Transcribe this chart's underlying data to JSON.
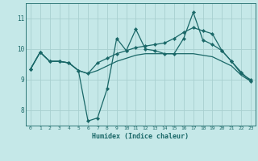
{
  "xlabel": "Humidex (Indice chaleur)",
  "xlim": [
    -0.5,
    23.5
  ],
  "ylim": [
    7.5,
    11.5
  ],
  "yticks": [
    8,
    9,
    10,
    11
  ],
  "xticks": [
    0,
    1,
    2,
    3,
    4,
    5,
    6,
    7,
    8,
    9,
    10,
    11,
    12,
    13,
    14,
    15,
    16,
    17,
    18,
    19,
    20,
    21,
    22,
    23
  ],
  "bg_color": "#c5e8e8",
  "grid_color": "#a8d0d0",
  "line_color": "#1a6868",
  "lines": [
    {
      "x": [
        0,
        1,
        2,
        3,
        4,
        5,
        6,
        7,
        8,
        9,
        10,
        11,
        12,
        13,
        14,
        15,
        16,
        17,
        18,
        19,
        20,
        21,
        22,
        23
      ],
      "y": [
        9.35,
        9.9,
        9.6,
        9.6,
        9.55,
        9.3,
        7.65,
        7.75,
        8.7,
        10.35,
        9.95,
        10.65,
        10.0,
        9.95,
        9.85,
        9.85,
        10.35,
        11.2,
        10.3,
        10.15,
        9.95,
        9.6,
        9.25,
        8.95
      ]
    },
    {
      "x": [
        0,
        1,
        2,
        3,
        4,
        5,
        6,
        7,
        8,
        9,
        10,
        11,
        12,
        13,
        14,
        15,
        16,
        17,
        18,
        19,
        20,
        21,
        22,
        23
      ],
      "y": [
        9.35,
        9.9,
        9.6,
        9.6,
        9.55,
        9.3,
        9.2,
        9.55,
        9.7,
        9.85,
        9.95,
        10.05,
        10.1,
        10.15,
        10.2,
        10.35,
        10.55,
        10.7,
        10.6,
        10.5,
        9.95,
        9.6,
        9.2,
        9.0
      ]
    },
    {
      "x": [
        0,
        1,
        2,
        3,
        4,
        5,
        6,
        7,
        8,
        9,
        10,
        11,
        12,
        13,
        14,
        15,
        16,
        17,
        18,
        19,
        20,
        21,
        22,
        23
      ],
      "y": [
        9.35,
        9.9,
        9.6,
        9.6,
        9.55,
        9.3,
        9.2,
        9.3,
        9.45,
        9.6,
        9.7,
        9.8,
        9.85,
        9.85,
        9.85,
        9.85,
        9.85,
        9.85,
        9.8,
        9.75,
        9.6,
        9.45,
        9.15,
        8.95
      ]
    }
  ],
  "marker_lines": [
    0
  ],
  "figsize": [
    3.2,
    2.0
  ],
  "dpi": 100
}
